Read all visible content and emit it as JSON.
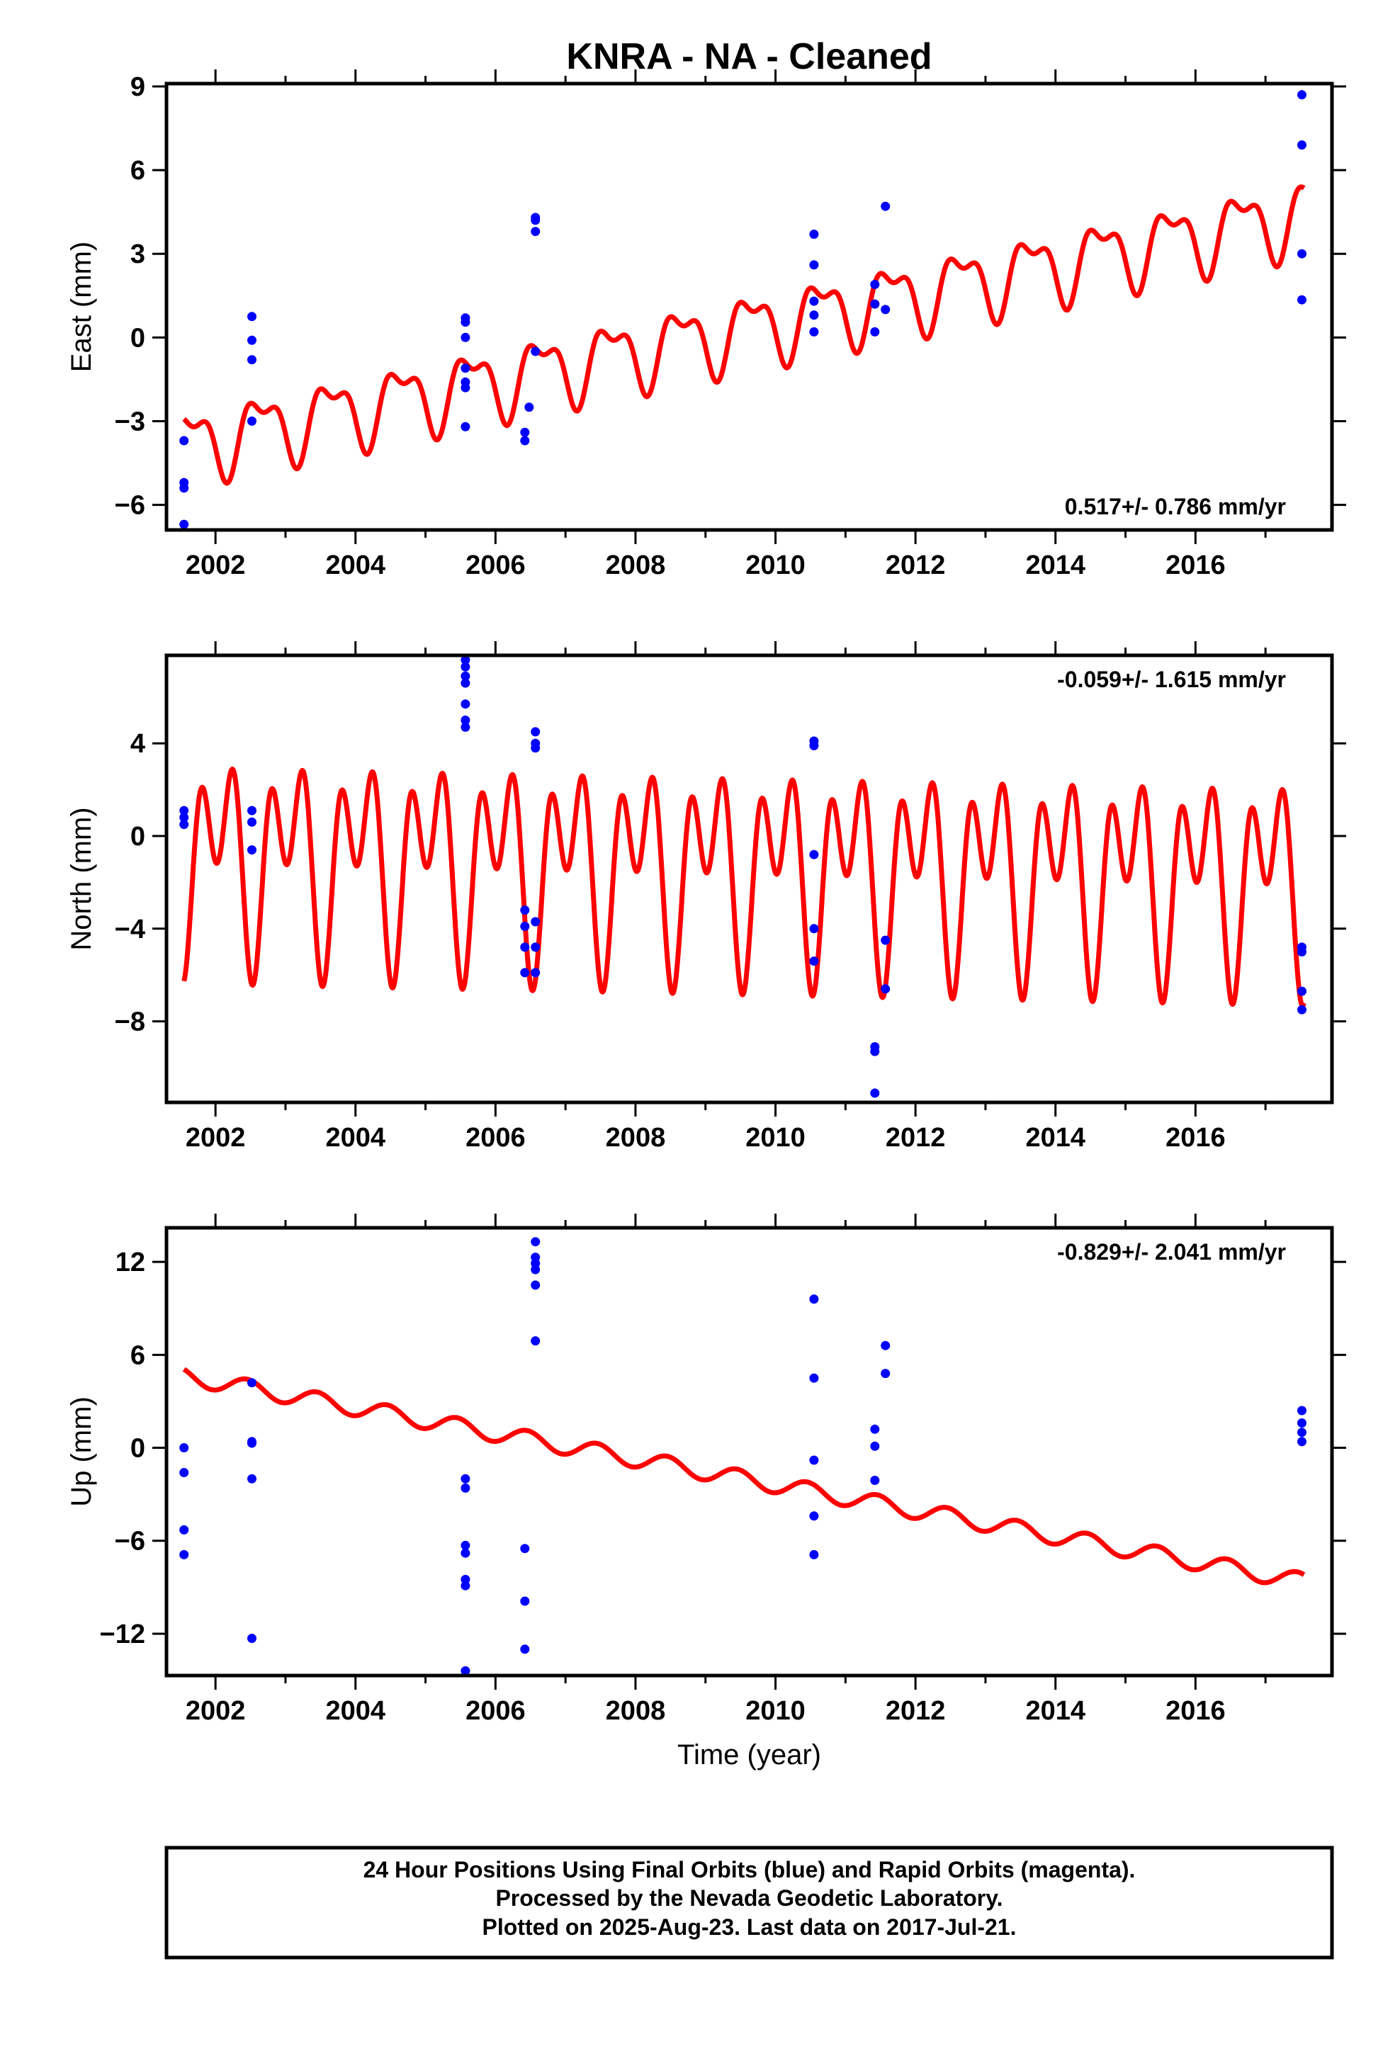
{
  "title": "KNRA  - NA - Cleaned",
  "xlabel": "Time (year)",
  "footer": [
    "24 Hour Positions Using Final Orbits (blue) and Rapid Orbits (magenta).",
    "Processed by the Nevada Geodetic Laboratory.",
    "Plotted on 2025-Aug-23. Last data on 2017-Jul-21."
  ],
  "colors": {
    "data": "#0000ff",
    "model": "#ff0000",
    "axis": "#000000"
  },
  "chart_data": [
    {
      "type": "scatter",
      "ylabel": "East (mm)",
      "rate_text": "0.517+/- 0.786 mm/yr",
      "xlim": [
        2001.3,
        2017.95
      ],
      "ylim": [
        -6.9,
        9.1
      ],
      "xticks": [
        2002,
        2004,
        2006,
        2008,
        2010,
        2012,
        2014,
        2016
      ],
      "yticks": [
        -6,
        -3,
        0,
        3,
        6,
        9
      ],
      "ytick_labels": [
        "−6",
        "−3",
        "0",
        "3",
        "6",
        "9"
      ],
      "grid": false,
      "series": [
        {
          "kind": "points",
          "points": [
            [
              2001.55,
              -3.7
            ],
            [
              2001.55,
              -5.2
            ],
            [
              2001.55,
              -5.4
            ],
            [
              2001.55,
              -6.7
            ],
            [
              2002.52,
              0.75
            ],
            [
              2002.52,
              -0.1
            ],
            [
              2002.52,
              -0.8
            ],
            [
              2002.52,
              -3.0
            ],
            [
              2005.57,
              0.7
            ],
            [
              2005.57,
              0.55
            ],
            [
              2005.57,
              0.0
            ],
            [
              2005.57,
              -1.1
            ],
            [
              2005.57,
              -1.6
            ],
            [
              2005.57,
              -1.8
            ],
            [
              2005.57,
              -3.2
            ],
            [
              2006.42,
              -3.4
            ],
            [
              2006.42,
              -3.7
            ],
            [
              2006.48,
              -2.5
            ],
            [
              2006.57,
              4.3
            ],
            [
              2006.57,
              4.2
            ],
            [
              2006.57,
              3.8
            ],
            [
              2006.57,
              -0.5
            ],
            [
              2010.55,
              3.7
            ],
            [
              2010.55,
              2.6
            ],
            [
              2010.55,
              1.3
            ],
            [
              2010.55,
              0.8
            ],
            [
              2010.55,
              0.2
            ],
            [
              2011.42,
              1.9
            ],
            [
              2011.42,
              1.2
            ],
            [
              2011.42,
              0.2
            ],
            [
              2011.57,
              4.7
            ],
            [
              2011.57,
              1.0
            ],
            [
              2017.52,
              8.7
            ],
            [
              2017.52,
              6.9
            ],
            [
              2017.52,
              3.0
            ],
            [
              2017.52,
              1.35
            ]
          ]
        },
        {
          "kind": "model",
          "range": [
            2001.55,
            2017.55
          ],
          "offset_at_2009": 0.0,
          "rate": 0.517,
          "annual_amp": 1.15,
          "annual_phase": 0.6,
          "semi_amp": 0.55,
          "semi_phase": 0.2
        }
      ]
    },
    {
      "type": "scatter",
      "ylabel": "North (mm)",
      "rate_text": "-0.059+/- 1.615 mm/yr",
      "xlim": [
        2001.3,
        2017.95
      ],
      "ylim": [
        -11.5,
        7.8
      ],
      "xticks": [
        2002,
        2004,
        2006,
        2008,
        2010,
        2012,
        2014,
        2016
      ],
      "yticks": [
        -8,
        -4,
        0,
        4
      ],
      "ytick_labels": [
        "−8",
        "−4",
        "0",
        "4"
      ],
      "grid": false,
      "series": [
        {
          "kind": "points",
          "points": [
            [
              2001.55,
              1.1
            ],
            [
              2001.55,
              0.8
            ],
            [
              2001.55,
              0.5
            ],
            [
              2002.52,
              1.1
            ],
            [
              2002.52,
              0.6
            ],
            [
              2002.52,
              -0.6
            ],
            [
              2005.57,
              7.6
            ],
            [
              2005.57,
              7.3
            ],
            [
              2005.57,
              6.9
            ],
            [
              2005.57,
              6.6
            ],
            [
              2005.57,
              5.7
            ],
            [
              2005.57,
              5.0
            ],
            [
              2005.57,
              4.7
            ],
            [
              2006.42,
              -3.2
            ],
            [
              2006.42,
              -3.9
            ],
            [
              2006.42,
              -4.8
            ],
            [
              2006.42,
              -5.9
            ],
            [
              2006.57,
              4.5
            ],
            [
              2006.57,
              4.0
            ],
            [
              2006.57,
              3.8
            ],
            [
              2006.57,
              -3.7
            ],
            [
              2006.57,
              -4.8
            ],
            [
              2006.57,
              -5.9
            ],
            [
              2010.55,
              4.1
            ],
            [
              2010.55,
              3.9
            ],
            [
              2010.55,
              -0.8
            ],
            [
              2010.55,
              -4.0
            ],
            [
              2010.55,
              -5.4
            ],
            [
              2011.42,
              -9.1
            ],
            [
              2011.42,
              -9.3
            ],
            [
              2011.42,
              -11.1
            ],
            [
              2011.57,
              -4.5
            ],
            [
              2011.57,
              -6.6
            ],
            [
              2017.52,
              -4.8
            ],
            [
              2017.52,
              -5.0
            ],
            [
              2017.52,
              -6.7
            ],
            [
              2017.52,
              -7.5
            ]
          ]
        },
        {
          "kind": "model",
          "range": [
            2001.55,
            2017.55
          ],
          "offset_at_2009": -1.2,
          "rate": -0.059,
          "annual_amp": 2.65,
          "annual_phase": 1.2,
          "semi_amp": 3.0,
          "semi_phase": 0.35
        }
      ]
    },
    {
      "type": "scatter",
      "ylabel": "Up (mm)",
      "rate_text": "-0.829+/- 2.041 mm/yr",
      "xlim": [
        2001.3,
        2017.95
      ],
      "ylim": [
        -14.7,
        14.2
      ],
      "xticks": [
        2002,
        2004,
        2006,
        2008,
        2010,
        2012,
        2014,
        2016
      ],
      "yticks": [
        -12,
        -6,
        0,
        6,
        12
      ],
      "ytick_labels": [
        "−12",
        "−6",
        "0",
        "6",
        "12"
      ],
      "grid": false,
      "series": [
        {
          "kind": "points",
          "points": [
            [
              2001.55,
              0.0
            ],
            [
              2001.55,
              -1.6
            ],
            [
              2001.55,
              -5.3
            ],
            [
              2001.55,
              -6.9
            ],
            [
              2002.52,
              4.2
            ],
            [
              2002.52,
              0.4
            ],
            [
              2002.52,
              0.3
            ],
            [
              2002.52,
              -2.0
            ],
            [
              2002.52,
              -12.3
            ],
            [
              2005.57,
              -2.0
            ],
            [
              2005.57,
              -2.6
            ],
            [
              2005.57,
              -6.3
            ],
            [
              2005.57,
              -6.8
            ],
            [
              2005.57,
              -8.5
            ],
            [
              2005.57,
              -8.9
            ],
            [
              2005.57,
              -14.4
            ],
            [
              2006.42,
              -6.5
            ],
            [
              2006.42,
              -9.9
            ],
            [
              2006.42,
              -13.0
            ],
            [
              2006.57,
              13.3
            ],
            [
              2006.57,
              12.3
            ],
            [
              2006.57,
              11.9
            ],
            [
              2006.57,
              11.5
            ],
            [
              2006.57,
              10.5
            ],
            [
              2006.57,
              6.9
            ],
            [
              2010.55,
              9.6
            ],
            [
              2010.55,
              4.5
            ],
            [
              2010.55,
              -0.8
            ],
            [
              2010.55,
              -4.4
            ],
            [
              2010.55,
              -6.9
            ],
            [
              2011.42,
              1.2
            ],
            [
              2011.42,
              0.1
            ],
            [
              2011.42,
              -2.1
            ],
            [
              2011.57,
              6.6
            ],
            [
              2011.57,
              4.8
            ],
            [
              2017.52,
              2.4
            ],
            [
              2017.52,
              1.6
            ],
            [
              2017.52,
              1.0
            ],
            [
              2017.52,
              0.4
            ]
          ]
        },
        {
          "kind": "model",
          "range": [
            2001.55,
            2017.55
          ],
          "offset_at_2009": -1.55,
          "rate": -0.829,
          "annual_amp": 0.55,
          "annual_phase": 0.8,
          "semi_amp": 0.0,
          "semi_phase": 0.0
        }
      ]
    }
  ]
}
